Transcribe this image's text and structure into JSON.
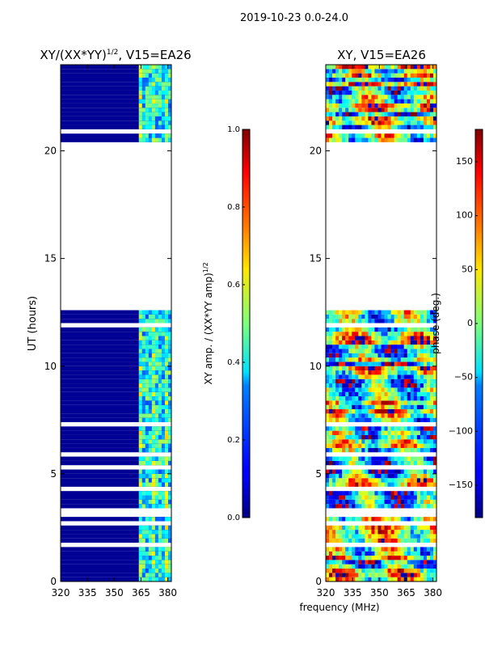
{
  "figure_title": "2019-10-23 0.0-24.0",
  "shared_xlabel": "frequency (MHz)",
  "chart_data": [
    {
      "type": "heatmap",
      "title_main": "XY/(XX*YY)",
      "title_sup": "1/2",
      "title_rest": ", V15=EA26",
      "ylabel": "UT (hours)",
      "xlim": [
        320,
        382
      ],
      "ylim": [
        0,
        24
      ],
      "xticks": [
        "320",
        "335",
        "350",
        "365",
        "380"
      ],
      "xtick_values": [
        320,
        335,
        350,
        365,
        380
      ],
      "yticks": [
        "0",
        "5",
        "10",
        "15",
        "20"
      ],
      "ytick_values": [
        0,
        5,
        10,
        15,
        20
      ],
      "data_gap_hours": [
        12.5,
        20.2
      ],
      "dense_band_MHz": [
        363,
        383
      ],
      "colorbar": {
        "label_main": "XY amp. / (XX*YY amp)",
        "label_sup": "1/2",
        "range": [
          0.0,
          1.0
        ],
        "ticks": [
          "0.0",
          "0.2",
          "0.4",
          "0.6",
          "0.8",
          "1.0"
        ],
        "tick_values": [
          0.0,
          0.2,
          0.4,
          0.6,
          0.8,
          1.0
        ],
        "colormap": "jet"
      }
    },
    {
      "type": "heatmap",
      "title": "XY, V15=EA26",
      "xlim": [
        320,
        382
      ],
      "ylim": [
        0,
        24
      ],
      "xticks": [
        "320",
        "335",
        "350",
        "365",
        "380"
      ],
      "xtick_values": [
        320,
        335,
        350,
        365,
        380
      ],
      "yticks": [
        "0",
        "5",
        "10",
        "15",
        "20"
      ],
      "ytick_values": [
        0,
        5,
        10,
        15,
        20
      ],
      "data_gap_hours": [
        12.5,
        20.2
      ],
      "colorbar": {
        "label": "phase (deg.)",
        "range": [
          -180,
          180
        ],
        "ticks": [
          "−150",
          "−100",
          "−50",
          "0",
          "50",
          "100",
          "150"
        ],
        "tick_values": [
          -150,
          -100,
          -50,
          0,
          50,
          100,
          150
        ],
        "colormap": "jet"
      }
    }
  ]
}
